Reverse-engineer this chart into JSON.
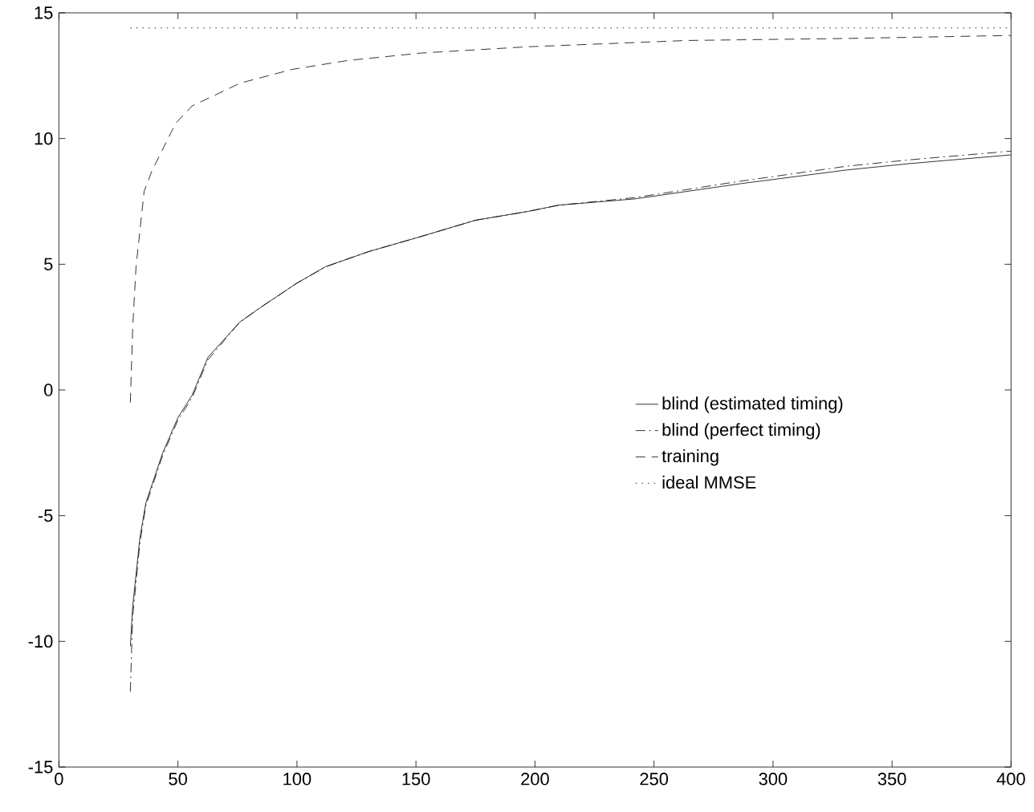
{
  "chart_data": {
    "type": "line",
    "xlim": [
      0,
      400
    ],
    "ylim": [
      -15,
      15
    ],
    "xticks": [
      0,
      50,
      100,
      150,
      200,
      250,
      300,
      350,
      400
    ],
    "yticks": [
      -15,
      -10,
      -5,
      0,
      5,
      10,
      15
    ],
    "grid": false,
    "legend": "right",
    "marker": "none",
    "series": [
      {
        "name": "blind (estimated timing)",
        "color": "#000000",
        "line_style": "solid",
        "x": [
          30,
          31,
          34,
          36.5,
          43.6,
          50,
          56,
          62.6,
          76,
          85,
          100,
          112,
          130,
          152,
          175,
          197,
          210,
          242,
          286,
          331,
          357,
          400
        ],
        "values": [
          -10.2,
          -8.6,
          -5.9,
          -4.5,
          -2.5,
          -1.1,
          -0.2,
          1.3,
          2.7,
          3.3,
          4.25,
          4.9,
          5.5,
          6.1,
          6.75,
          7.1,
          7.35,
          7.6,
          8.2,
          8.75,
          9.0,
          9.35
        ]
      },
      {
        "name": "blind (perfect timing)",
        "color": "#000000",
        "line_style": "dashdot",
        "x": [
          30,
          31,
          34,
          36.5,
          43.6,
          50,
          56,
          62.6,
          76,
          85,
          100,
          112,
          130,
          152,
          175,
          197,
          210,
          242,
          286,
          331,
          357,
          400
        ],
        "values": [
          -12,
          -9,
          -6.1,
          -4.6,
          -2.6,
          -1.2,
          -0.3,
          1.2,
          2.7,
          3.3,
          4.25,
          4.9,
          5.5,
          6.1,
          6.75,
          7.1,
          7.35,
          7.65,
          8.3,
          8.9,
          9.15,
          9.5
        ]
      },
      {
        "name": "training",
        "color": "#000000",
        "line_style": "dashed",
        "x": [
          30,
          31,
          32.4,
          35.8,
          39,
          49,
          56,
          65,
          76,
          98,
          121,
          152,
          197,
          264,
          331,
          400
        ],
        "values": [
          -0.5,
          2.5,
          4.9,
          7.9,
          8.7,
          10.6,
          11.3,
          11.7,
          12.2,
          12.75,
          13.1,
          13.4,
          13.65,
          13.9,
          13.98,
          14.1
        ]
      },
      {
        "name": "ideal MMSE",
        "color": "#000000",
        "line_style": "dotted",
        "x": [
          30,
          400
        ],
        "values": [
          14.4,
          14.4
        ]
      }
    ]
  }
}
